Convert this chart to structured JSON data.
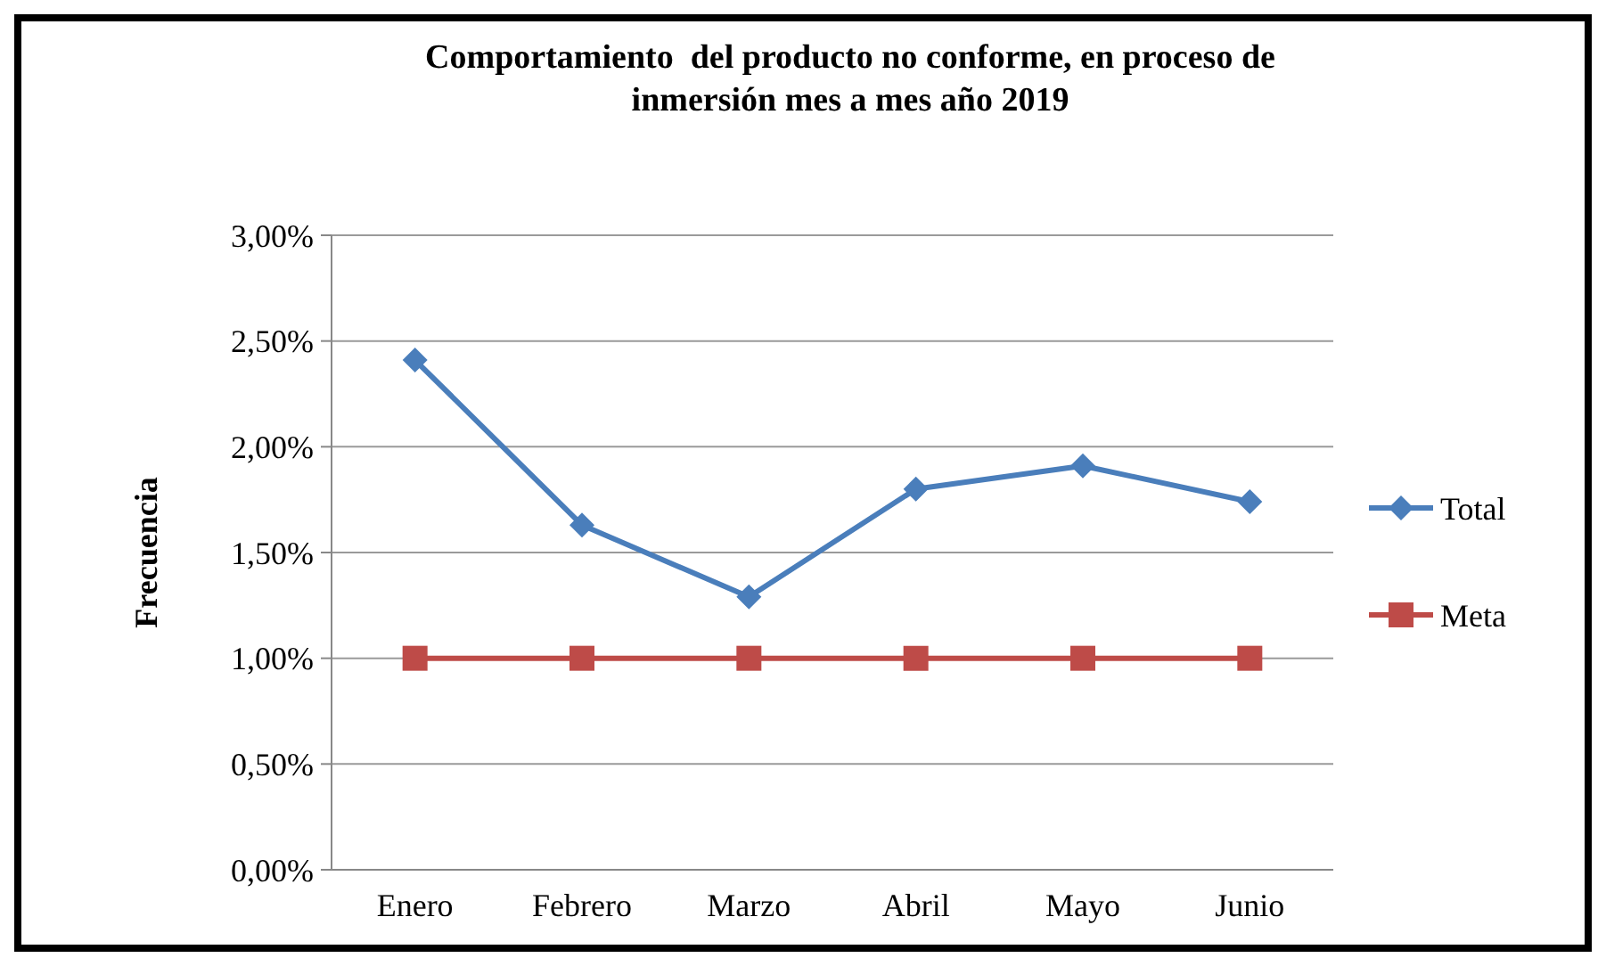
{
  "chart_data": {
    "type": "line",
    "title": "Comportamiento  del producto no conforme, en proceso de inmersión mes a mes año 2019",
    "ylabel": "Frecuencia",
    "categories": [
      "Enero",
      "Febrero",
      "Marzo",
      "Abril",
      "Mayo",
      "Junio"
    ],
    "series": [
      {
        "name": "Total",
        "color": "#4a7ebb",
        "values": [
          2.41,
          1.63,
          1.29,
          1.8,
          1.91,
          1.74
        ],
        "marker": "diamond"
      },
      {
        "name": "Meta",
        "color": "#be4b48",
        "values": [
          1,
          1,
          1,
          1,
          1,
          1
        ],
        "marker": "square"
      }
    ],
    "ylim": [
      0,
      3
    ],
    "yticks": [
      {
        "value": 0,
        "label": "0,00%"
      },
      {
        "value": 0.5,
        "label": "0,50%"
      },
      {
        "value": 1,
        "label": "1,00%"
      },
      {
        "value": 1.5,
        "label": "1,50%"
      },
      {
        "value": 2,
        "label": "2,00%"
      },
      {
        "value": 2.5,
        "label": "2,50%"
      },
      {
        "value": 3,
        "label": "3,00%"
      }
    ],
    "grid": "y",
    "legend": "right",
    "line_style": "solid"
  }
}
